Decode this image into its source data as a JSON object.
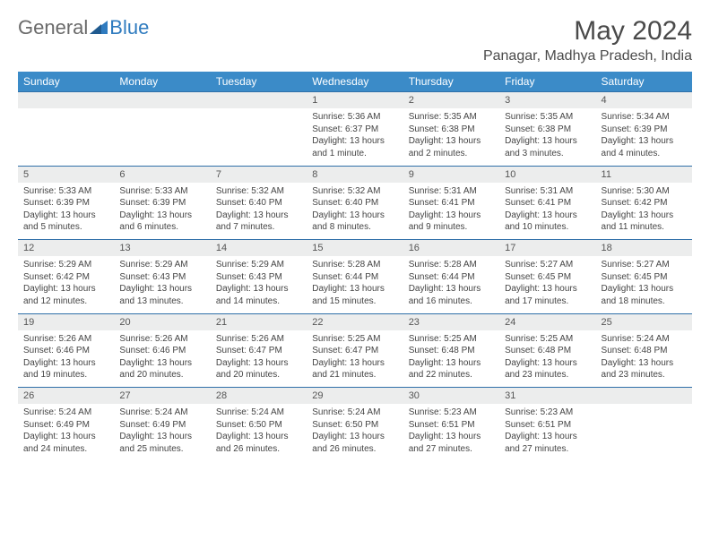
{
  "brand": {
    "part1": "General",
    "part2": "Blue"
  },
  "title": "May 2024",
  "location": "Panagar, Madhya Pradesh, India",
  "colors": {
    "header_bg": "#3b8bc8",
    "header_text": "#ffffff",
    "daynum_bg": "#eceded",
    "border": "#2f6fa8",
    "text": "#444444",
    "brand_gray": "#6a6a6a",
    "brand_blue": "#2f7bbf"
  },
  "dayNames": [
    "Sunday",
    "Monday",
    "Tuesday",
    "Wednesday",
    "Thursday",
    "Friday",
    "Saturday"
  ],
  "weeks": [
    [
      null,
      null,
      null,
      {
        "n": "1",
        "sr": "5:36 AM",
        "ss": "6:37 PM",
        "dl": "13 hours and 1 minute."
      },
      {
        "n": "2",
        "sr": "5:35 AM",
        "ss": "6:38 PM",
        "dl": "13 hours and 2 minutes."
      },
      {
        "n": "3",
        "sr": "5:35 AM",
        "ss": "6:38 PM",
        "dl": "13 hours and 3 minutes."
      },
      {
        "n": "4",
        "sr": "5:34 AM",
        "ss": "6:39 PM",
        "dl": "13 hours and 4 minutes."
      }
    ],
    [
      {
        "n": "5",
        "sr": "5:33 AM",
        "ss": "6:39 PM",
        "dl": "13 hours and 5 minutes."
      },
      {
        "n": "6",
        "sr": "5:33 AM",
        "ss": "6:39 PM",
        "dl": "13 hours and 6 minutes."
      },
      {
        "n": "7",
        "sr": "5:32 AM",
        "ss": "6:40 PM",
        "dl": "13 hours and 7 minutes."
      },
      {
        "n": "8",
        "sr": "5:32 AM",
        "ss": "6:40 PM",
        "dl": "13 hours and 8 minutes."
      },
      {
        "n": "9",
        "sr": "5:31 AM",
        "ss": "6:41 PM",
        "dl": "13 hours and 9 minutes."
      },
      {
        "n": "10",
        "sr": "5:31 AM",
        "ss": "6:41 PM",
        "dl": "13 hours and 10 minutes."
      },
      {
        "n": "11",
        "sr": "5:30 AM",
        "ss": "6:42 PM",
        "dl": "13 hours and 11 minutes."
      }
    ],
    [
      {
        "n": "12",
        "sr": "5:29 AM",
        "ss": "6:42 PM",
        "dl": "13 hours and 12 minutes."
      },
      {
        "n": "13",
        "sr": "5:29 AM",
        "ss": "6:43 PM",
        "dl": "13 hours and 13 minutes."
      },
      {
        "n": "14",
        "sr": "5:29 AM",
        "ss": "6:43 PM",
        "dl": "13 hours and 14 minutes."
      },
      {
        "n": "15",
        "sr": "5:28 AM",
        "ss": "6:44 PM",
        "dl": "13 hours and 15 minutes."
      },
      {
        "n": "16",
        "sr": "5:28 AM",
        "ss": "6:44 PM",
        "dl": "13 hours and 16 minutes."
      },
      {
        "n": "17",
        "sr": "5:27 AM",
        "ss": "6:45 PM",
        "dl": "13 hours and 17 minutes."
      },
      {
        "n": "18",
        "sr": "5:27 AM",
        "ss": "6:45 PM",
        "dl": "13 hours and 18 minutes."
      }
    ],
    [
      {
        "n": "19",
        "sr": "5:26 AM",
        "ss": "6:46 PM",
        "dl": "13 hours and 19 minutes."
      },
      {
        "n": "20",
        "sr": "5:26 AM",
        "ss": "6:46 PM",
        "dl": "13 hours and 20 minutes."
      },
      {
        "n": "21",
        "sr": "5:26 AM",
        "ss": "6:47 PM",
        "dl": "13 hours and 20 minutes."
      },
      {
        "n": "22",
        "sr": "5:25 AM",
        "ss": "6:47 PM",
        "dl": "13 hours and 21 minutes."
      },
      {
        "n": "23",
        "sr": "5:25 AM",
        "ss": "6:48 PM",
        "dl": "13 hours and 22 minutes."
      },
      {
        "n": "24",
        "sr": "5:25 AM",
        "ss": "6:48 PM",
        "dl": "13 hours and 23 minutes."
      },
      {
        "n": "25",
        "sr": "5:24 AM",
        "ss": "6:48 PM",
        "dl": "13 hours and 23 minutes."
      }
    ],
    [
      {
        "n": "26",
        "sr": "5:24 AM",
        "ss": "6:49 PM",
        "dl": "13 hours and 24 minutes."
      },
      {
        "n": "27",
        "sr": "5:24 AM",
        "ss": "6:49 PM",
        "dl": "13 hours and 25 minutes."
      },
      {
        "n": "28",
        "sr": "5:24 AM",
        "ss": "6:50 PM",
        "dl": "13 hours and 26 minutes."
      },
      {
        "n": "29",
        "sr": "5:24 AM",
        "ss": "6:50 PM",
        "dl": "13 hours and 26 minutes."
      },
      {
        "n": "30",
        "sr": "5:23 AM",
        "ss": "6:51 PM",
        "dl": "13 hours and 27 minutes."
      },
      {
        "n": "31",
        "sr": "5:23 AM",
        "ss": "6:51 PM",
        "dl": "13 hours and 27 minutes."
      },
      null
    ]
  ],
  "labels": {
    "sunrise": "Sunrise:",
    "sunset": "Sunset:",
    "daylight": "Daylight:"
  }
}
